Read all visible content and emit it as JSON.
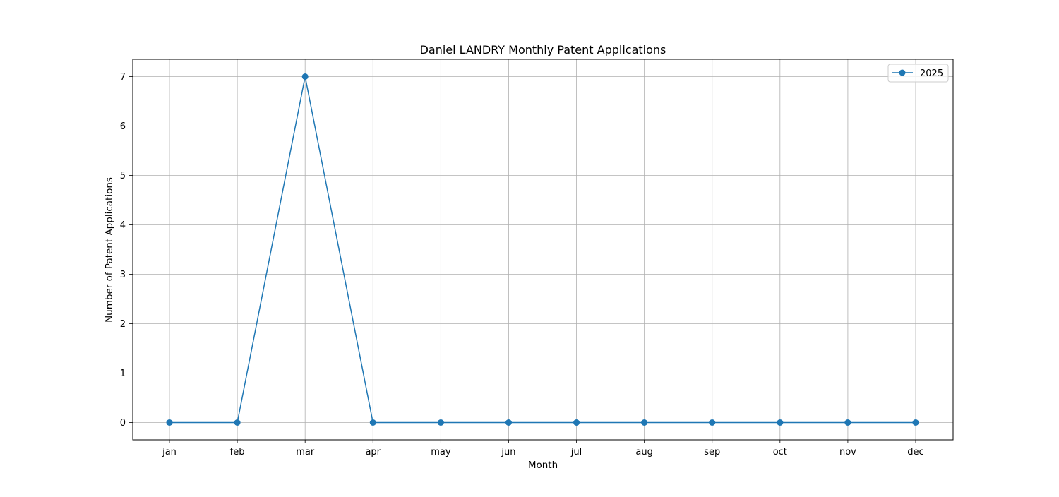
{
  "chart_data": {
    "type": "line",
    "title": "Daniel LANDRY Monthly Patent Applications",
    "xlabel": "Month",
    "ylabel": "Number of Patent Applications",
    "categories": [
      "jan",
      "feb",
      "mar",
      "apr",
      "may",
      "jun",
      "jul",
      "aug",
      "sep",
      "oct",
      "nov",
      "dec"
    ],
    "series": [
      {
        "name": "2025",
        "values": [
          0,
          0,
          7,
          0,
          0,
          0,
          0,
          0,
          0,
          0,
          0,
          0
        ],
        "color": "#1f77b4",
        "marker": "circle"
      }
    ],
    "yticks": [
      0,
      1,
      2,
      3,
      4,
      5,
      6,
      7
    ],
    "ylim": [
      -0.35,
      7.35
    ],
    "grid": true,
    "legend_position": "top-right",
    "colors": {
      "grid": "#b0b0b0",
      "axes": "#000000",
      "background": "#ffffff"
    }
  }
}
